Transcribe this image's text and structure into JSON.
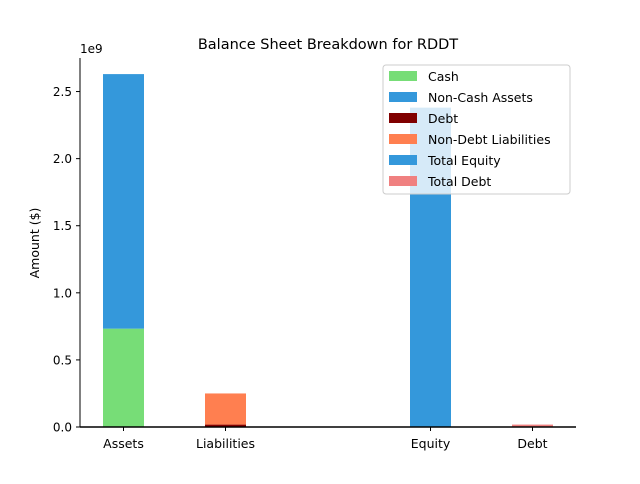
{
  "chart_data": {
    "type": "bar",
    "title": "Balance Sheet Breakdown for RDDT",
    "xlabel": "",
    "ylabel": "Amount ($)",
    "offset_label": "1e9",
    "categories": [
      "Assets",
      "Liabilities",
      "Equity",
      "Debt"
    ],
    "ylim": [
      0,
      2.75
    ],
    "yticks": [
      0.0,
      0.5,
      1.0,
      1.5,
      2.0,
      2.5
    ],
    "ytick_labels": [
      "0.0",
      "0.5",
      "1.0",
      "1.5",
      "2.0",
      "2.5"
    ],
    "grid": false,
    "legend_position": "top-right",
    "series": [
      {
        "name": "Cash",
        "category": "Assets",
        "base": 0,
        "value": 0.733,
        "color": "#77dd77"
      },
      {
        "name": "Non-Cash Assets",
        "category": "Assets",
        "base": 0.733,
        "value": 1.897,
        "color": "#3498db"
      },
      {
        "name": "Debt",
        "category": "Liabilities",
        "base": 0,
        "value": 0.018,
        "color": "#800000"
      },
      {
        "name": "Non-Debt Liabilities",
        "category": "Liabilities",
        "base": 0.018,
        "value": 0.232,
        "color": "#ff7f50"
      },
      {
        "name": "Total Equity",
        "category": "Equity",
        "base": 0,
        "value": 2.38,
        "color": "#3498db"
      },
      {
        "name": "Total Debt",
        "category": "Debt",
        "base": 0,
        "value": 0.018,
        "color": "#f08080"
      }
    ]
  }
}
